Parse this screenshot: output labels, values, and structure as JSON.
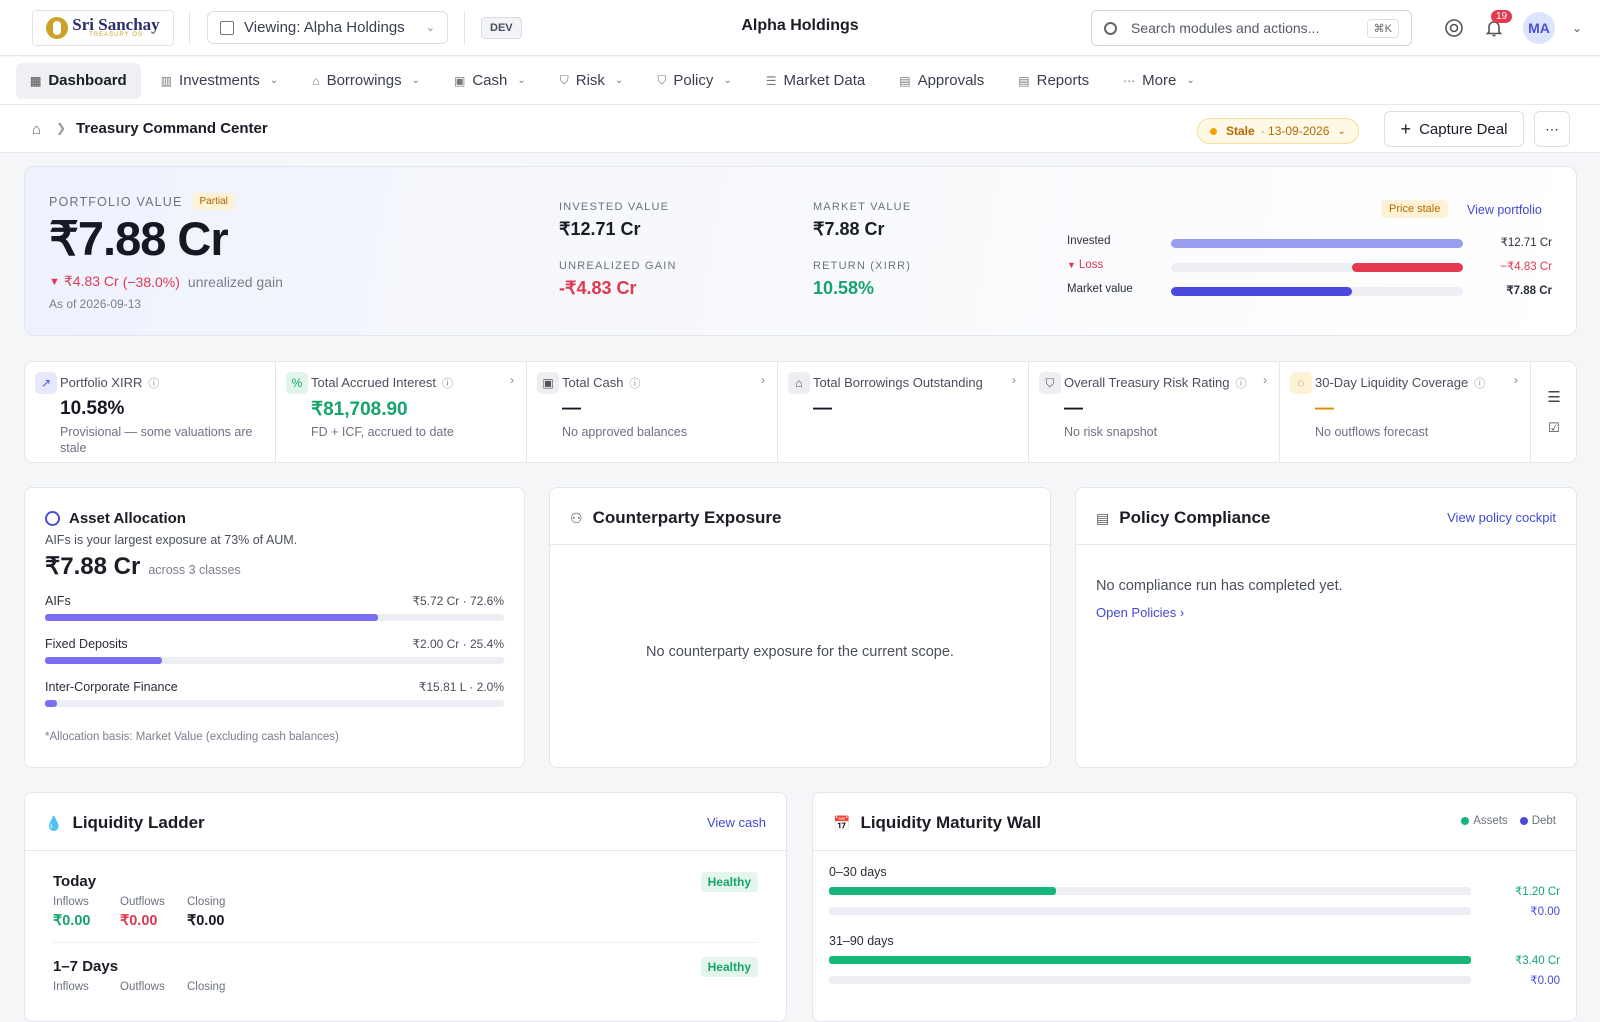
{
  "header": {
    "logo_name": "Sri Sanchay",
    "logo_sub": "TREASURY OS",
    "viewing_label": "Viewing: Alpha Holdings",
    "env_badge": "DEV",
    "center_title": "Alpha Holdings",
    "search_placeholder": "Search modules and actions...",
    "search_shortcut": "⌘K",
    "notification_count": "19",
    "avatar_initials": "MA"
  },
  "nav": {
    "items": [
      {
        "label": "Dashboard",
        "icon": "grid-icon",
        "active": true,
        "dropdown": false
      },
      {
        "label": "Investments",
        "icon": "columns-icon",
        "dropdown": true
      },
      {
        "label": "Borrowings",
        "icon": "bank-icon",
        "dropdown": true
      },
      {
        "label": "Cash",
        "icon": "wallet-icon",
        "dropdown": true
      },
      {
        "label": "Risk",
        "icon": "shield-icon",
        "dropdown": true
      },
      {
        "label": "Policy",
        "icon": "shield-check-icon",
        "dropdown": true
      },
      {
        "label": "Market Data",
        "icon": "database-icon",
        "dropdown": false
      },
      {
        "label": "Approvals",
        "icon": "clipboard-check-icon",
        "dropdown": false
      },
      {
        "label": "Reports",
        "icon": "document-icon",
        "dropdown": false
      },
      {
        "label": "More",
        "icon": "dots-icon",
        "dropdown": true
      }
    ]
  },
  "breadcrumb": {
    "title": "Treasury Command Center",
    "stale_label": "Stale",
    "stale_date": "· 13-09-2026",
    "capture_label": "Capture Deal"
  },
  "portfolio": {
    "label": "PORTFOLIO VALUE",
    "badge": "Partial",
    "value": "₹7.88 Cr",
    "change": "₹4.83 Cr",
    "change_pct": "(−38.0%)",
    "change_suffix": "unrealized gain",
    "as_of": "As of 2026-09-13",
    "invested_label": "INVESTED VALUE",
    "invested_value": "₹12.71 Cr",
    "market_label": "MARKET VALUE",
    "market_value": "₹7.88 Cr",
    "unrealized_label": "UNREALIZED GAIN",
    "unrealized_value": "-₹4.83 Cr",
    "return_label": "RETURN (XIRR)",
    "return_value": "10.58%",
    "price_stale": "Price stale",
    "view_portfolio": "View portfolio",
    "bars": [
      {
        "label": "Invested",
        "value": "₹12.71 Cr",
        "fraction": 1.0,
        "color": "#9a9ef0"
      },
      {
        "label": "Loss",
        "value": "−₹4.83 Cr",
        "fraction": 0.38,
        "color": "#e53950"
      },
      {
        "label": "Market value",
        "value": "₹7.88 Cr",
        "fraction": 0.62,
        "color": "#4b48df"
      }
    ]
  },
  "kpis": [
    {
      "title": "Portfolio XIRR",
      "value": "10.58%",
      "sub": "Provisional — some valuations are stale",
      "icon": "trending-up-icon",
      "icon_bg": "#e6e9fc",
      "icon_color": "#4b4fd8",
      "value_color": "#161923",
      "info": true,
      "arrow": false
    },
    {
      "title": "Total Accrued Interest",
      "value": "₹81,708.90",
      "sub": "FD + ICF, accrued to date",
      "icon": "percent-icon",
      "icon_bg": "#dff5ea",
      "icon_color": "#16a46b",
      "value_color": "#16a46b",
      "info": true,
      "arrow": true
    },
    {
      "title": "Total Cash",
      "value": "—",
      "sub": "No approved balances",
      "icon": "wallet-icon",
      "icon_bg": "#eceef2",
      "icon_color": "#555",
      "value_color": "#161923",
      "info": true,
      "arrow": true
    },
    {
      "title": "Total Borrowings Outstanding",
      "value": "—",
      "sub": "",
      "icon": "bank-icon",
      "icon_bg": "#eceef2",
      "icon_color": "#555",
      "value_color": "#161923",
      "info": false,
      "arrow": true
    },
    {
      "title": "Overall Treasury Risk Rating",
      "value": "—",
      "sub": "No risk snapshot",
      "icon": "shield-check-icon",
      "icon_bg": "#eceef2",
      "icon_color": "#555",
      "value_color": "#161923",
      "info": true,
      "arrow": true
    },
    {
      "title": "30-Day Liquidity Coverage",
      "value": "—",
      "sub": "No outflows forecast",
      "icon": "droplets-icon",
      "icon_bg": "#fdf1d6",
      "icon_color": "#b26b00",
      "value_color": "#e08a00",
      "info": true,
      "arrow": true
    }
  ],
  "allocation": {
    "title": "Asset Allocation",
    "subtitle": "AIFs is your largest exposure at 73% of AUM.",
    "total": "₹7.88 Cr",
    "total_suffix": "across 3 classes",
    "rows": [
      {
        "label": "AIFs",
        "value": "₹5.72 Cr · 72.6%",
        "fraction": 0.726
      },
      {
        "label": "Fixed Deposits",
        "value": "₹2.00 Cr · 25.4%",
        "fraction": 0.254
      },
      {
        "label": "Inter-Corporate Finance",
        "value": "₹15.81 L · 2.0%",
        "fraction": 0.02
      }
    ],
    "footnote": "*Allocation basis: Market Value (excluding cash balances)"
  },
  "counterparty": {
    "title": "Counterparty Exposure",
    "empty": "No counterparty exposure for the current scope."
  },
  "policy": {
    "title": "Policy Compliance",
    "link": "View policy cockpit",
    "empty": "No compliance run has completed yet.",
    "open": "Open Policies ›"
  },
  "ladder": {
    "title": "Liquidity Ladder",
    "link": "View cash",
    "rows": [
      {
        "period": "Today",
        "status": "Healthy",
        "inflows_label": "Inflows",
        "inflows": "₹0.00",
        "outflows_label": "Outflows",
        "outflows": "₹0.00",
        "closing_label": "Closing",
        "closing": "₹0.00"
      },
      {
        "period": "1–7 Days",
        "status": "Healthy",
        "inflows_label": "Inflows",
        "outflows_label": "Outflows",
        "closing_label": "Closing"
      }
    ]
  },
  "wall": {
    "title": "Liquidity Maturity Wall",
    "legend_assets": "Assets",
    "legend_debt": "Debt",
    "assets_color": "#16b57a",
    "debt_color": "#4b48df",
    "rows": [
      {
        "bucket": "0–30 days",
        "assets": "₹1.20 Cr",
        "assets_fraction": 0.353,
        "debt": "₹0.00",
        "debt_fraction": 0
      },
      {
        "bucket": "31–90 days",
        "assets": "₹3.40 Cr",
        "assets_fraction": 1.0,
        "debt": "₹0.00",
        "debt_fraction": 0
      }
    ]
  }
}
